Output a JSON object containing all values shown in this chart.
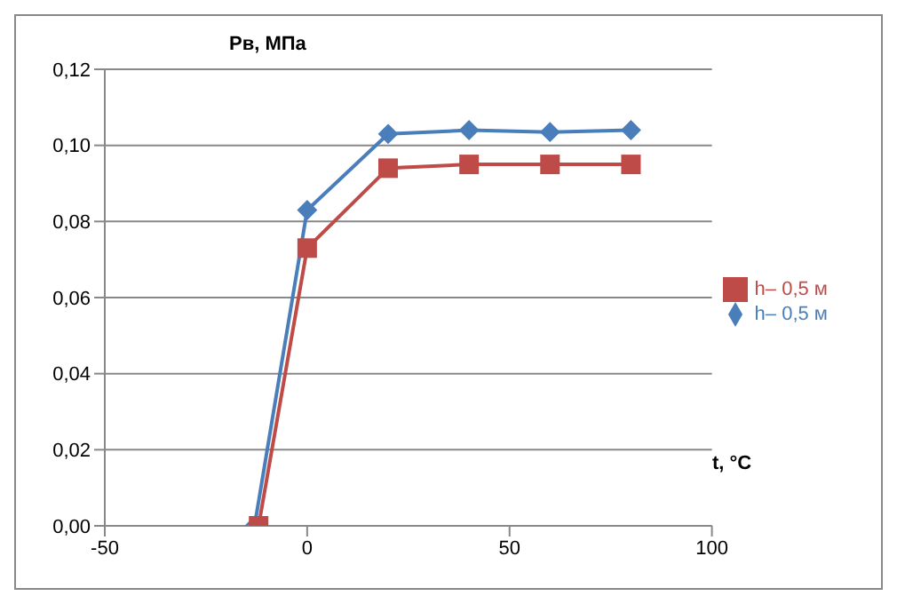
{
  "chart_data": {
    "type": "line",
    "xlabel": "t, °C",
    "ylabel": "Pв, МПа",
    "series": [
      {
        "name": "h– 0,5 м",
        "color": "#4a7ebb",
        "marker": "diamond",
        "x": [
          -13,
          0,
          20,
          40,
          60,
          80
        ],
        "values": [
          0,
          0.083,
          0.103,
          0.104,
          0.1035,
          0.104
        ]
      },
      {
        "name": "h–  0,5 м",
        "color": "#be4b48",
        "marker": "square",
        "x": [
          -12,
          0,
          20,
          40,
          60,
          80
        ],
        "values": [
          0,
          0.073,
          0.094,
          0.095,
          0.095,
          0.095
        ]
      }
    ],
    "xlim": [
      -50,
      100
    ],
    "xticks": [
      -50,
      0,
      50,
      100
    ],
    "ylim": [
      0,
      0.12
    ],
    "yticks": [
      {
        "value": 0,
        "label": "0,00"
      },
      {
        "value": 0.02,
        "label": "0,02"
      },
      {
        "value": 0.04,
        "label": "0,04"
      },
      {
        "value": 0.06,
        "label": "0,06"
      },
      {
        "value": 0.08,
        "label": "0,08"
      },
      {
        "value": 0.1,
        "label": "0,10"
      },
      {
        "value": 0.12,
        "label": "0,12"
      }
    ],
    "grid": "y",
    "legend": "right"
  }
}
